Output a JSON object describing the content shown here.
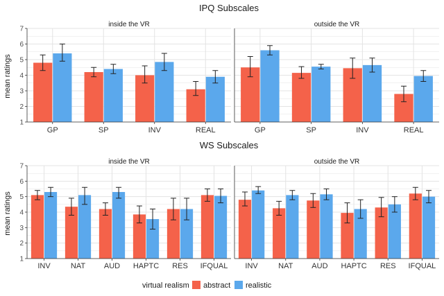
{
  "colors": {
    "abstract": "#F4624A",
    "realistic": "#5BA8EC",
    "grid": "#e3e3e3",
    "panel_bg": "#ffffff"
  },
  "legend": {
    "title": "virtual realism",
    "items": [
      "abstract",
      "realistic"
    ]
  },
  "chart_data": [
    {
      "type": "bar",
      "title": "IPQ Subscales",
      "ylabel": "mean ratings",
      "ylim": [
        1,
        7
      ],
      "yticks": [
        1,
        2,
        3,
        4,
        5,
        6,
        7
      ],
      "grid": true,
      "legend_position": "bottom",
      "panels": [
        {
          "label": "inside the VR",
          "categories": [
            "GP",
            "SP",
            "INV",
            "REAL"
          ],
          "series": [
            {
              "name": "abstract",
              "values": [
                4.8,
                4.2,
                4.0,
                3.1
              ],
              "err_low": [
                4.3,
                3.9,
                3.5,
                2.7
              ],
              "err_high": [
                5.3,
                4.5,
                4.6,
                3.6
              ]
            },
            {
              "name": "realistic",
              "values": [
                5.4,
                4.4,
                4.85,
                3.9
              ],
              "err_low": [
                4.9,
                4.1,
                4.3,
                3.5
              ],
              "err_high": [
                6.0,
                4.7,
                5.4,
                4.3
              ]
            }
          ]
        },
        {
          "label": "outside the VR",
          "categories": [
            "GP",
            "SP",
            "INV",
            "REAL"
          ],
          "series": [
            {
              "name": "abstract",
              "values": [
                4.5,
                4.15,
                4.45,
                2.8
              ],
              "err_low": [
                3.9,
                3.8,
                3.8,
                2.3
              ],
              "err_high": [
                5.2,
                4.55,
                5.1,
                3.3
              ]
            },
            {
              "name": "realistic",
              "values": [
                5.6,
                4.55,
                4.65,
                3.95
              ],
              "err_low": [
                5.3,
                4.4,
                4.2,
                3.6
              ],
              "err_high": [
                5.9,
                4.7,
                5.1,
                4.3
              ]
            }
          ]
        }
      ]
    },
    {
      "type": "bar",
      "title": "WS Subscales",
      "ylabel": "mean ratings",
      "ylim": [
        1,
        7
      ],
      "yticks": [
        1,
        2,
        3,
        4,
        5,
        6,
        7
      ],
      "grid": true,
      "legend_position": "bottom",
      "panels": [
        {
          "label": "inside the VR",
          "categories": [
            "INV",
            "NAT",
            "AUD",
            "HAPTC",
            "RES",
            "IFQUAL"
          ],
          "series": [
            {
              "name": "abstract",
              "values": [
                5.1,
                4.35,
                4.2,
                3.85,
                4.2,
                5.1
              ],
              "err_low": [
                4.8,
                3.8,
                3.8,
                3.3,
                3.5,
                4.7
              ],
              "err_high": [
                5.4,
                4.9,
                4.6,
                4.4,
                4.9,
                5.5
              ]
            },
            {
              "name": "realistic",
              "values": [
                5.3,
                5.1,
                5.3,
                3.55,
                4.2,
                5.05
              ],
              "err_low": [
                5.0,
                4.5,
                4.9,
                2.9,
                3.5,
                4.6
              ],
              "err_high": [
                5.6,
                5.6,
                5.6,
                4.2,
                4.9,
                5.5
              ]
            }
          ]
        },
        {
          "label": "outside the VR",
          "categories": [
            "INV",
            "NAT",
            "AUD",
            "HAPTC",
            "RES",
            "IFQUAL"
          ],
          "series": [
            {
              "name": "abstract",
              "values": [
                4.8,
                4.25,
                4.75,
                3.95,
                4.3,
                5.2
              ],
              "err_low": [
                4.4,
                3.8,
                4.3,
                3.3,
                3.7,
                4.8
              ],
              "err_high": [
                5.3,
                4.7,
                5.2,
                4.6,
                4.95,
                5.6
              ]
            },
            {
              "name": "realistic",
              "values": [
                5.4,
                5.1,
                5.15,
                4.2,
                4.5,
                5.0
              ],
              "err_low": [
                5.2,
                4.8,
                4.8,
                3.6,
                4.0,
                4.6
              ],
              "err_high": [
                5.65,
                5.4,
                5.5,
                4.8,
                5.0,
                5.4
              ]
            }
          ]
        }
      ]
    }
  ]
}
